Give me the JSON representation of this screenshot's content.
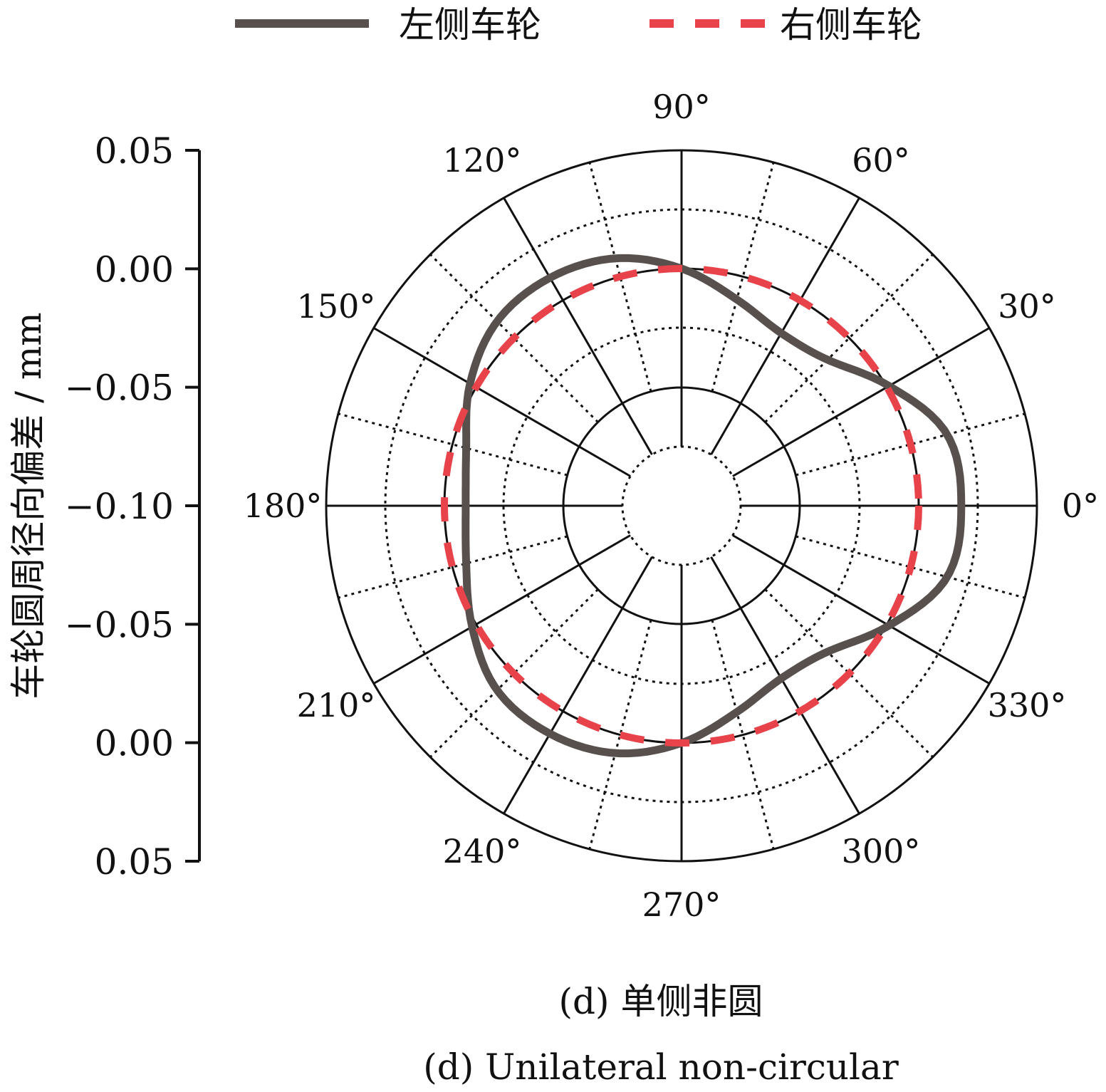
{
  "chart_data": {
    "type": "line",
    "polar": true,
    "legend": {
      "position": "top",
      "entries": [
        {
          "label": "左侧车轮",
          "color": "#57504d",
          "style": "solid"
        },
        {
          "label": "右侧车轮",
          "color": "#e8434a",
          "style": "dashed"
        }
      ]
    },
    "ylabel": "车轮圆周径向偏差 / mm",
    "r_ticks": [
      "0.05",
      "0.00",
      "−0.05",
      "−0.10",
      "−0.05",
      "0.00",
      "0.05"
    ],
    "r_range": [
      -0.1,
      0.05
    ],
    "angle_ticks": [
      "0°",
      "30°",
      "60°",
      "90°",
      "120°",
      "150°",
      "180°",
      "210°",
      "240°",
      "270°",
      "300°",
      "330°"
    ],
    "grid": true,
    "series": [
      {
        "name": "左侧车轮",
        "color": "#57504d",
        "theta_deg": [
          0,
          15,
          30,
          45,
          60,
          75,
          90,
          105,
          120,
          135,
          150,
          165,
          180,
          195,
          210,
          225,
          240,
          255,
          270,
          285,
          300,
          315,
          330,
          345,
          360
        ],
        "deviation_mm": [
          0.018,
          0.016,
          0.001,
          -0.013,
          -0.016,
          -0.01,
          0.0,
          0.008,
          0.011,
          0.01,
          0.003,
          -0.006,
          -0.009,
          -0.006,
          0.002,
          0.01,
          0.011,
          0.008,
          0.0,
          -0.01,
          -0.016,
          -0.013,
          0.001,
          0.016,
          0.018
        ]
      },
      {
        "name": "右侧车轮",
        "color": "#e8434a",
        "theta_deg": [
          0,
          360
        ],
        "deviation_mm": [
          0.0,
          0.0
        ]
      }
    ],
    "caption": "(d) 单侧非圆",
    "caption_en": "(d) Unilateral non-circular"
  }
}
